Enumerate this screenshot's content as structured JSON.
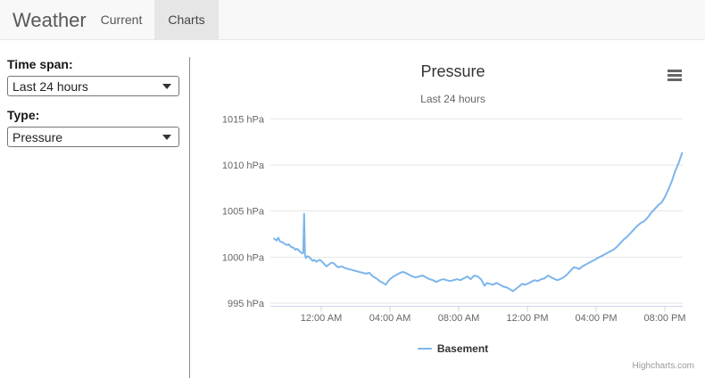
{
  "header": {
    "app_title": "Weather",
    "tabs": [
      {
        "label": "Current",
        "active": false
      },
      {
        "label": "Charts",
        "active": true
      }
    ]
  },
  "sidebar": {
    "time_span": {
      "label": "Time span:",
      "value": "Last 24 hours"
    },
    "type": {
      "label": "Type:",
      "value": "Pressure"
    }
  },
  "colors": {
    "series_blue": "#7cb5ec",
    "grid_line": "#e6e6e6",
    "axis_line": "#ccd6eb",
    "active_tab_bg": "#e6e6e6",
    "header_bg": "#f8f8f8"
  },
  "chart_data": {
    "type": "line",
    "title": "Pressure",
    "subtitle": "Last 24 hours",
    "unit": "hPa",
    "x_unit": "hours_from_midnight",
    "xrange_hours": [
      -2.75,
      21
    ],
    "ylim": [
      994.7,
      1015
    ],
    "grid": "horizontal",
    "legend_position": "bottom",
    "credits": "Highcharts.com",
    "yticks": [
      995,
      1000,
      1005,
      1010,
      1015
    ],
    "xticks": [
      {
        "t": 0,
        "label": "12:00 AM"
      },
      {
        "t": 4,
        "label": "04:00 AM"
      },
      {
        "t": 8,
        "label": "08:00 AM"
      },
      {
        "t": 12,
        "label": "12:00 PM"
      },
      {
        "t": 16,
        "label": "04:00 PM"
      },
      {
        "t": 20,
        "label": "08:00 PM"
      }
    ],
    "series": [
      {
        "name": "Basement",
        "color": "#7cb5ec",
        "points": [
          [
            -2.75,
            1002.0
          ],
          [
            -2.6,
            1001.8
          ],
          [
            -2.5,
            1002.1
          ],
          [
            -2.4,
            1001.7
          ],
          [
            -2.25,
            1001.6
          ],
          [
            -2.1,
            1001.4
          ],
          [
            -2.0,
            1001.3
          ],
          [
            -1.9,
            1001.4
          ],
          [
            -1.75,
            1001.1
          ],
          [
            -1.6,
            1001.0
          ],
          [
            -1.5,
            1000.8
          ],
          [
            -1.4,
            1000.9
          ],
          [
            -1.25,
            1000.6
          ],
          [
            -1.1,
            1000.4
          ],
          [
            -1.05,
            1000.5
          ],
          [
            -1.0,
            1004.7
          ],
          [
            -0.95,
            1000.3
          ],
          [
            -0.9,
            999.9
          ],
          [
            -0.8,
            1000.1
          ],
          [
            -0.7,
            1000.0
          ],
          [
            -0.6,
            999.8
          ],
          [
            -0.5,
            999.6
          ],
          [
            -0.4,
            999.7
          ],
          [
            -0.3,
            999.5
          ],
          [
            -0.2,
            999.6
          ],
          [
            -0.1,
            999.7
          ],
          [
            0,
            999.6
          ],
          [
            0.15,
            999.3
          ],
          [
            0.3,
            999.0
          ],
          [
            0.45,
            999.2
          ],
          [
            0.6,
            999.4
          ],
          [
            0.75,
            999.3
          ],
          [
            0.9,
            999.0
          ],
          [
            1.0,
            998.9
          ],
          [
            1.2,
            999.0
          ],
          [
            1.4,
            998.8
          ],
          [
            1.6,
            998.7
          ],
          [
            1.8,
            998.6
          ],
          [
            2.0,
            998.5
          ],
          [
            2.2,
            998.4
          ],
          [
            2.4,
            998.3
          ],
          [
            2.6,
            998.2
          ],
          [
            2.8,
            998.3
          ],
          [
            3.0,
            997.9
          ],
          [
            3.2,
            997.7
          ],
          [
            3.4,
            997.4
          ],
          [
            3.6,
            997.2
          ],
          [
            3.75,
            997.0
          ],
          [
            3.9,
            997.4
          ],
          [
            4.0,
            997.6
          ],
          [
            4.2,
            997.9
          ],
          [
            4.4,
            998.1
          ],
          [
            4.6,
            998.3
          ],
          [
            4.75,
            998.4
          ],
          [
            4.9,
            998.3
          ],
          [
            5.1,
            998.1
          ],
          [
            5.3,
            997.9
          ],
          [
            5.5,
            997.8
          ],
          [
            5.7,
            997.9
          ],
          [
            5.9,
            998.0
          ],
          [
            6.1,
            997.8
          ],
          [
            6.3,
            997.6
          ],
          [
            6.5,
            997.5
          ],
          [
            6.7,
            997.3
          ],
          [
            6.9,
            997.5
          ],
          [
            7.1,
            997.6
          ],
          [
            7.3,
            997.5
          ],
          [
            7.5,
            997.4
          ],
          [
            7.7,
            997.5
          ],
          [
            7.9,
            997.6
          ],
          [
            8.1,
            997.5
          ],
          [
            8.3,
            997.7
          ],
          [
            8.5,
            997.9
          ],
          [
            8.7,
            997.6
          ],
          [
            8.9,
            998.0
          ],
          [
            9.1,
            997.9
          ],
          [
            9.3,
            997.6
          ],
          [
            9.5,
            996.9
          ],
          [
            9.65,
            997.2
          ],
          [
            9.8,
            997.1
          ],
          [
            10.0,
            997.0
          ],
          [
            10.2,
            997.2
          ],
          [
            10.4,
            997.0
          ],
          [
            10.6,
            996.8
          ],
          [
            10.8,
            996.7
          ],
          [
            11.0,
            996.5
          ],
          [
            11.15,
            996.3
          ],
          [
            11.3,
            996.5
          ],
          [
            11.5,
            996.8
          ],
          [
            11.7,
            997.1
          ],
          [
            11.85,
            997.0
          ],
          [
            12.0,
            997.1
          ],
          [
            12.2,
            997.3
          ],
          [
            12.4,
            997.5
          ],
          [
            12.6,
            997.4
          ],
          [
            12.8,
            997.6
          ],
          [
            13.0,
            997.7
          ],
          [
            13.2,
            998.0
          ],
          [
            13.4,
            997.8
          ],
          [
            13.6,
            997.6
          ],
          [
            13.75,
            997.5
          ],
          [
            13.9,
            997.6
          ],
          [
            14.1,
            997.8
          ],
          [
            14.3,
            998.1
          ],
          [
            14.5,
            998.5
          ],
          [
            14.7,
            998.9
          ],
          [
            14.9,
            998.8
          ],
          [
            15.0,
            998.7
          ],
          [
            15.2,
            999.0
          ],
          [
            15.4,
            999.2
          ],
          [
            15.6,
            999.4
          ],
          [
            15.8,
            999.6
          ],
          [
            16.0,
            999.8
          ],
          [
            16.2,
            1000.0
          ],
          [
            16.4,
            1000.2
          ],
          [
            16.6,
            1000.4
          ],
          [
            16.8,
            1000.6
          ],
          [
            17.0,
            1000.8
          ],
          [
            17.2,
            1001.1
          ],
          [
            17.4,
            1001.5
          ],
          [
            17.6,
            1001.9
          ],
          [
            17.8,
            1002.2
          ],
          [
            18.0,
            1002.6
          ],
          [
            18.2,
            1003.0
          ],
          [
            18.4,
            1003.4
          ],
          [
            18.6,
            1003.7
          ],
          [
            18.8,
            1003.9
          ],
          [
            19.0,
            1004.3
          ],
          [
            19.2,
            1004.8
          ],
          [
            19.4,
            1005.2
          ],
          [
            19.6,
            1005.6
          ],
          [
            19.8,
            1005.9
          ],
          [
            20.0,
            1006.5
          ],
          [
            20.2,
            1007.3
          ],
          [
            20.4,
            1008.2
          ],
          [
            20.6,
            1009.3
          ],
          [
            20.8,
            1010.2
          ],
          [
            21.0,
            1011.3
          ]
        ]
      }
    ]
  }
}
